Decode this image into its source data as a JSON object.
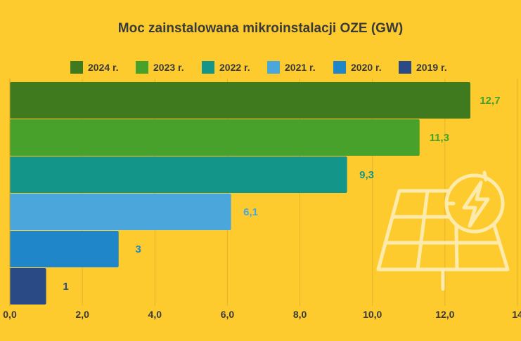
{
  "chart_data": {
    "type": "bar",
    "orientation": "horizontal",
    "title": "Moc zainstalowana mikroinstalacji OZE (GW)",
    "categories": [
      "2024 r.",
      "2023 r.",
      "2022 r.",
      "2021 r.",
      "2020 r.",
      "2019 r."
    ],
    "values": [
      12.7,
      11.3,
      9.3,
      6.1,
      3,
      1
    ],
    "value_labels": [
      "12,7",
      "11,3",
      "9,3",
      "6,1",
      "3",
      "1"
    ],
    "colors": [
      "#3F7A1F",
      "#48A12A",
      "#14958A",
      "#4BA6DB",
      "#1F87C9",
      "#2A4A86"
    ],
    "label_colors": [
      "#48A12A",
      "#48A12A",
      "#14958A",
      "#4BA6DB",
      "#1F87C9",
      "#2A4A86"
    ],
    "xlim": [
      0,
      14
    ],
    "xticks": [
      0,
      2,
      4,
      6,
      8,
      10,
      12,
      14
    ],
    "xtick_labels": [
      "0,0",
      "2,0",
      "4,0",
      "6,0",
      "8,0",
      "10,0",
      "12,0",
      "14"
    ],
    "grid": true,
    "legend_position": "top",
    "decoration_icon": "solar-panel-icon"
  }
}
